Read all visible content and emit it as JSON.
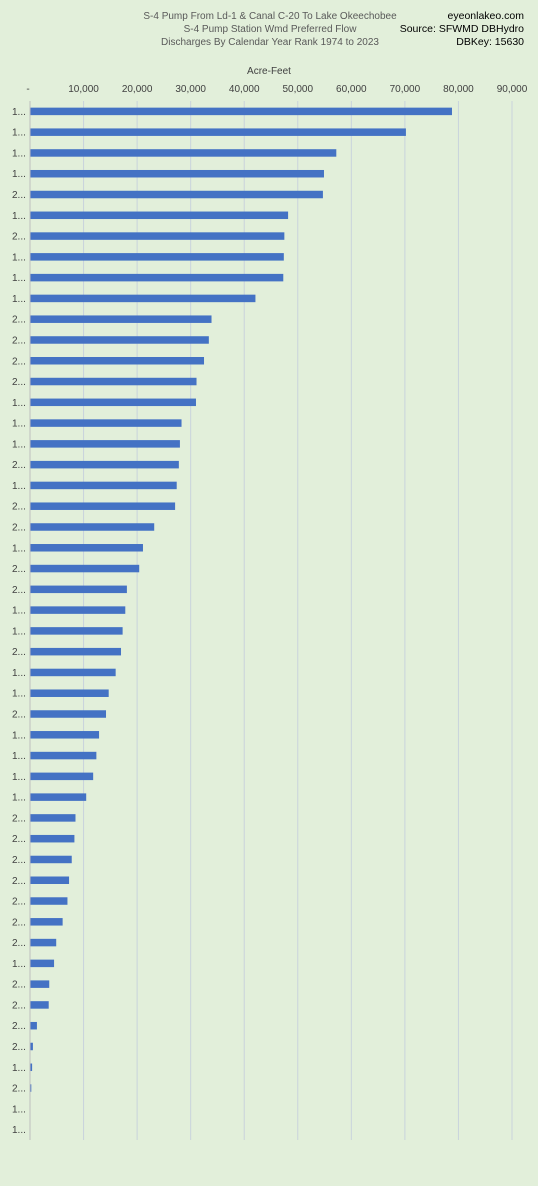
{
  "source": {
    "site": "eyeonlakeo.com",
    "source": "Source: SFWMD DBHydro",
    "dbkey": "DBKey: 15630"
  },
  "chart_data": {
    "type": "bar",
    "orientation": "horizontal",
    "title": [
      "S-4 Pump From Ld-1 & Canal C-20 To Lake Okeechobee",
      "S-4 Pump Station Wmd Preferred Flow",
      "Discharges By Calendar Year Rank 1974 to 2023"
    ],
    "xlabel": "Acre-Feet",
    "ylabel": "",
    "xlim": [
      0,
      90000
    ],
    "xticks": [
      0,
      10000,
      20000,
      30000,
      40000,
      50000,
      60000,
      70000,
      80000,
      90000
    ],
    "xtick_labels": [
      "-",
      "10,000",
      "20,000",
      "30,000",
      "40,000",
      "50,000",
      "60,000",
      "70,000",
      "80,000",
      "90,000"
    ],
    "grid": true,
    "bar_color": "#4472c4",
    "categories": [
      "1...",
      "1...",
      "1...",
      "1...",
      "2...",
      "1...",
      "2...",
      "1...",
      "1...",
      "1...",
      "2...",
      "2...",
      "2...",
      "2...",
      "1...",
      "1...",
      "1...",
      "2...",
      "1...",
      "2...",
      "2...",
      "1...",
      "2...",
      "2...",
      "1...",
      "1...",
      "2...",
      "1...",
      "1...",
      "2...",
      "1...",
      "1...",
      "1...",
      "1...",
      "2...",
      "2...",
      "2...",
      "2...",
      "2...",
      "2...",
      "2...",
      "1...",
      "2...",
      "2...",
      "2...",
      "2...",
      "1...",
      "2...",
      "1...",
      "1..."
    ],
    "values": [
      78700,
      70100,
      57100,
      54800,
      54600,
      48100,
      47400,
      47300,
      47200,
      42000,
      33800,
      33300,
      32400,
      31000,
      30900,
      28200,
      27900,
      27700,
      27300,
      27000,
      23100,
      21000,
      20300,
      18000,
      17700,
      17200,
      16900,
      15900,
      14600,
      14100,
      12800,
      12300,
      11700,
      10400,
      8400,
      8200,
      7700,
      7200,
      6900,
      6000,
      4800,
      4400,
      3500,
      3400,
      1200,
      450,
      300,
      150,
      0,
      0
    ]
  }
}
